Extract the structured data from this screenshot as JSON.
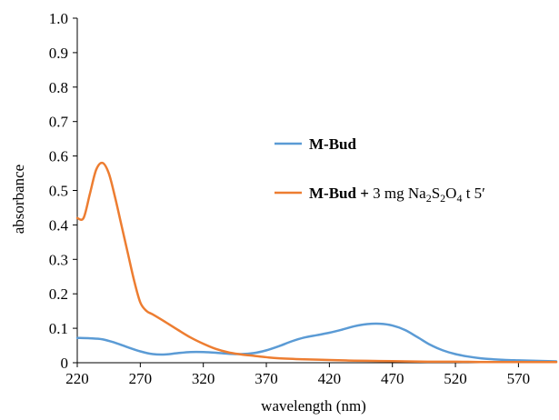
{
  "chart_data": {
    "type": "line",
    "xlabel": "wavelength (nm)",
    "ylabel": "absorbance",
    "xlim": [
      220,
      600
    ],
    "ylim": [
      0,
      1.0
    ],
    "x_ticks": [
      "220",
      "270",
      "320",
      "370",
      "420",
      "470",
      "520",
      "570"
    ],
    "y_ticks": [
      "0",
      "0.1",
      "0.2",
      "0.3",
      "0.4",
      "0.5",
      "0.6",
      "0.7",
      "0.8",
      "0.9",
      "1.0"
    ],
    "grid": false,
    "legend_position": "right",
    "series": [
      {
        "name": "M-Bud",
        "legend_parts": {
          "bold": "M-Bud",
          "rest": ""
        },
        "color": "#5b9bd5",
        "x": [
          220,
          230,
          240,
          250,
          260,
          270,
          280,
          290,
          300,
          310,
          320,
          330,
          340,
          350,
          360,
          370,
          380,
          390,
          400,
          410,
          420,
          430,
          440,
          450,
          460,
          470,
          480,
          490,
          500,
          510,
          520,
          530,
          540,
          550,
          560,
          570,
          580,
          590,
          600
        ],
        "y": [
          0.072,
          0.071,
          0.068,
          0.058,
          0.045,
          0.033,
          0.025,
          0.024,
          0.028,
          0.031,
          0.031,
          0.029,
          0.026,
          0.025,
          0.028,
          0.036,
          0.048,
          0.062,
          0.073,
          0.08,
          0.087,
          0.096,
          0.106,
          0.112,
          0.113,
          0.108,
          0.095,
          0.074,
          0.052,
          0.036,
          0.025,
          0.018,
          0.013,
          0.01,
          0.008,
          0.007,
          0.006,
          0.005,
          0.004
        ]
      },
      {
        "name": "M-Bud + 3 mg Na2S2O4 t 5′",
        "legend_parts": {
          "bold": "M-Bud",
          "plus": " + ",
          "pre": "3 mg Na",
          "sub1": "2",
          "mid1": "S",
          "sub2": "2",
          "mid2": "O",
          "sub3": "4",
          "post": " t 5′"
        },
        "color": "#ed7d31",
        "x": [
          220,
          225,
          230,
          235,
          240,
          245,
          250,
          255,
          260,
          265,
          270,
          275,
          280,
          290,
          300,
          310,
          320,
          330,
          340,
          350,
          360,
          370,
          380,
          400,
          420,
          440,
          460,
          480,
          500,
          520,
          540,
          560,
          580,
          600
        ],
        "y": [
          0.42,
          0.42,
          0.49,
          0.56,
          0.58,
          0.55,
          0.48,
          0.4,
          0.32,
          0.24,
          0.175,
          0.15,
          0.14,
          0.118,
          0.095,
          0.073,
          0.055,
          0.04,
          0.03,
          0.024,
          0.02,
          0.016,
          0.013,
          0.01,
          0.008,
          0.006,
          0.005,
          0.004,
          0.003,
          0.003,
          0.002,
          0.002,
          0.002,
          0.002
        ]
      }
    ]
  }
}
